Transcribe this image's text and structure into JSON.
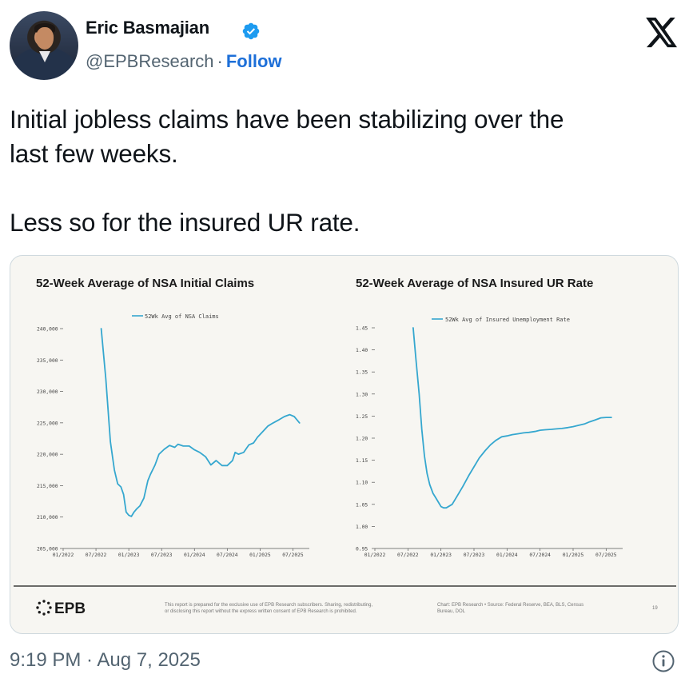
{
  "author": {
    "name": "Eric Basmajian",
    "handle": "@EPBResearch",
    "separator": "·",
    "follow_label": "Follow",
    "verified_color": "#1d9bf0"
  },
  "tweet": {
    "paragraph1": "Initial jobless claims have been stabilizing over the\nlast few weeks.",
    "paragraph2": "Less so for the insured UR rate."
  },
  "timestamp": "9:19 PM · Aug 7, 2025",
  "icons": {
    "brand": "x-logo-icon",
    "info": "info-icon",
    "verified": "verified-badge-icon"
  },
  "media_footer": {
    "brand": "EPB",
    "disclaimer_line1": "This report is prepared for the exclusive use of EPB Research subscribers. Sharing, redistributing,",
    "disclaimer_line2": "or disclosing this report without the express written consent of EPB Research is prohibited.",
    "source_line1": "Chart: EPB Research  •  Source: Federal Reserve, BEA, BLS, Census",
    "source_line2": "Bureau, DOL",
    "page_number": "19"
  },
  "chart_data": [
    {
      "type": "line",
      "title": "52-Week Average of NSA Initial Claims",
      "line_color": "#35a7cf",
      "x_ticks": [
        "01/2022",
        "07/2022",
        "01/2023",
        "07/2023",
        "01/2024",
        "07/2024",
        "01/2025",
        "07/2025"
      ],
      "y_ticks": [
        "240,000",
        "235,000",
        "230,000",
        "225,000",
        "220,000",
        "215,000",
        "210,000",
        "205,000"
      ],
      "ylim": [
        205000,
        240000
      ],
      "xlim": [
        2022.0,
        2025.75
      ],
      "grid": false,
      "legend_position": "top-center",
      "series": [
        {
          "name": "52Wk Avg of NSA Claims",
          "x": [
            2022.58,
            2022.65,
            2022.72,
            2022.78,
            2022.83,
            2022.88,
            2022.92,
            2022.96,
            2023.0,
            2023.04,
            2023.08,
            2023.12,
            2023.17,
            2023.23,
            2023.29,
            2023.33,
            2023.4,
            2023.46,
            2023.54,
            2023.62,
            2023.7,
            2023.75,
            2023.83,
            2023.92,
            2024.0,
            2024.08,
            2024.17,
            2024.25,
            2024.33,
            2024.42,
            2024.5,
            2024.58,
            2024.62,
            2024.67,
            2024.75,
            2024.83,
            2024.9,
            2024.96,
            2025.04,
            2025.12,
            2025.2,
            2025.29,
            2025.37,
            2025.45,
            2025.52,
            2025.56,
            2025.6
          ],
          "y": [
            240000,
            232000,
            222000,
            217500,
            215300,
            214800,
            213600,
            210800,
            210300,
            210100,
            210800,
            211300,
            211800,
            213000,
            215800,
            216800,
            218300,
            220000,
            220800,
            221400,
            221100,
            221600,
            221300,
            221300,
            220700,
            220300,
            219600,
            218300,
            219000,
            218200,
            218200,
            219000,
            220300,
            220000,
            220300,
            221500,
            221800,
            222700,
            223600,
            224500,
            225000,
            225500,
            226000,
            226300,
            226000,
            225500,
            225000
          ]
        }
      ]
    },
    {
      "type": "line",
      "title": "52-Week Average of NSA Insured UR Rate",
      "line_color": "#35a7cf",
      "x_ticks": [
        "01/2022",
        "07/2022",
        "01/2023",
        "07/2023",
        "01/2024",
        "07/2024",
        "01/2025",
        "07/2025"
      ],
      "y_ticks": [
        "1.45",
        "1.40",
        "1.35",
        "1.30",
        "1.25",
        "1.20",
        "1.15",
        "1.10",
        "1.05",
        "1.00",
        "0.95"
      ],
      "ylim": [
        0.95,
        1.45
      ],
      "xlim": [
        2022.0,
        2025.75
      ],
      "grid": false,
      "legend_position": "top-center",
      "series": [
        {
          "name": "52Wk Avg of Insured Unemployment Rate",
          "x": [
            2022.58,
            2022.62,
            2022.67,
            2022.71,
            2022.75,
            2022.79,
            2022.83,
            2022.88,
            2022.92,
            2022.96,
            2023.0,
            2023.04,
            2023.08,
            2023.17,
            2023.25,
            2023.33,
            2023.42,
            2023.5,
            2023.58,
            2023.67,
            2023.75,
            2023.83,
            2023.92,
            2024.0,
            2024.08,
            2024.17,
            2024.25,
            2024.33,
            2024.42,
            2024.5,
            2024.58,
            2024.67,
            2024.75,
            2024.83,
            2024.92,
            2025.0,
            2025.08,
            2025.17,
            2025.25,
            2025.33,
            2025.42,
            2025.5,
            2025.58
          ],
          "y": [
            1.45,
            1.38,
            1.3,
            1.22,
            1.16,
            1.12,
            1.095,
            1.075,
            1.065,
            1.055,
            1.045,
            1.042,
            1.042,
            1.05,
            1.07,
            1.09,
            1.115,
            1.135,
            1.155,
            1.172,
            1.185,
            1.195,
            1.203,
            1.205,
            1.208,
            1.21,
            1.212,
            1.213,
            1.215,
            1.218,
            1.219,
            1.22,
            1.221,
            1.222,
            1.224,
            1.226,
            1.229,
            1.232,
            1.237,
            1.241,
            1.246,
            1.247,
            1.247
          ]
        }
      ]
    }
  ]
}
